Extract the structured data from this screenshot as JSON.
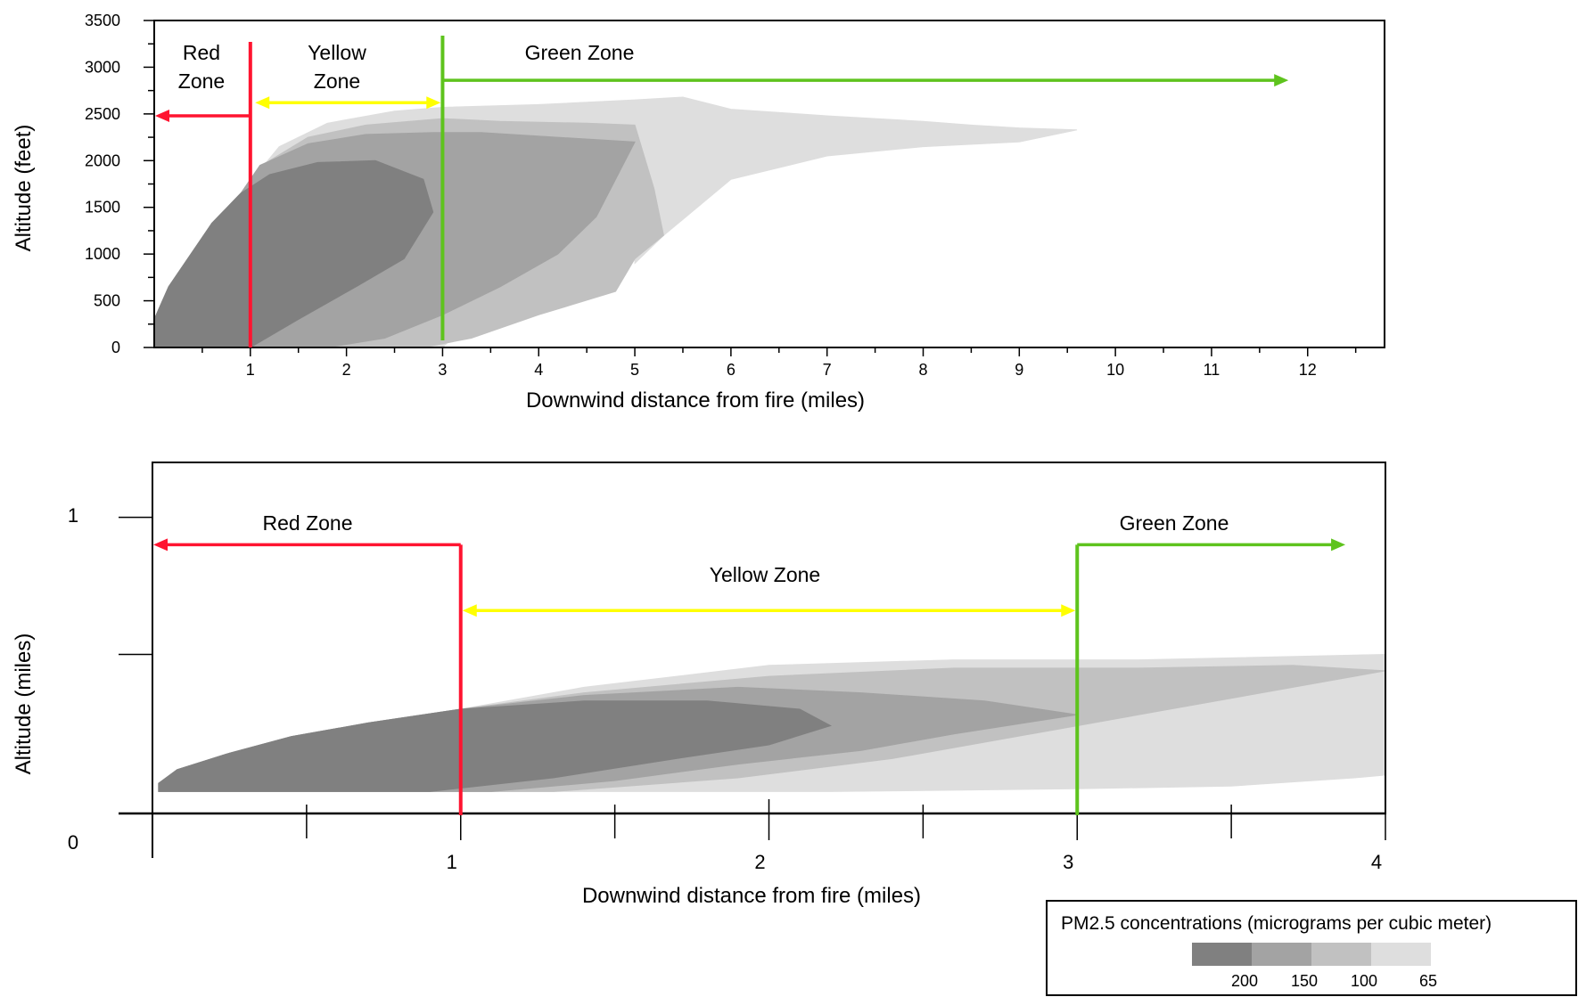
{
  "colors": {
    "level_200": "#808080",
    "level_150": "#a3a3a3",
    "level_100": "#c1c1c1",
    "level_65": "#dedede",
    "red_zone": "#ff1430",
    "yellow_zone": "#ffff00",
    "green_zone": "#5ec31d"
  },
  "chart_data": [
    {
      "type": "area",
      "description_id": "top-plume-chart",
      "xlabel": "Downwind distance from fire (miles)",
      "ylabel": "Altitude (feet)",
      "xlim": [
        0,
        12.8
      ],
      "ylim": [
        0,
        3500
      ],
      "x_ticks": [
        "1",
        "2",
        "3",
        "4",
        "5",
        "6",
        "7",
        "8",
        "9",
        "10",
        "11",
        "12"
      ],
      "x_tick_values": [
        1,
        2,
        3,
        4,
        5,
        6,
        7,
        8,
        9,
        10,
        11,
        12
      ],
      "y_ticks": [
        "0",
        "500",
        "1000",
        "1500",
        "2000",
        "2500",
        "3000",
        "3500"
      ],
      "y_tick_values": [
        0,
        500,
        1000,
        1500,
        2000,
        2500,
        3000,
        3500
      ],
      "grid": false,
      "zones": [
        {
          "label": "Red Zone",
          "line_x": 1.0,
          "arrow_from": 1.0,
          "arrow_to": 0.0,
          "arrow_y": 2480,
          "color_key": "red_zone",
          "label_lines": [
            "Red",
            "Zone"
          ]
        },
        {
          "label": "Yellow Zone",
          "line_x": 3.0,
          "arrow_from": 1.05,
          "arrow_to": 2.98,
          "arrow_y": 2620,
          "color_key": "yellow_zone",
          "label_lines": [
            "Yellow",
            "Zone"
          ]
        },
        {
          "label": "Green Zone",
          "line_x": 3.0,
          "arrow_from": 3.0,
          "arrow_to": 11.8,
          "arrow_y": 2860,
          "color_key": "green_zone",
          "label_lines": [
            "Green Zone"
          ]
        }
      ],
      "series": [
        {
          "level": "65",
          "color_key": "level_65",
          "upper": [
            [
              0,
              300
            ],
            [
              0.15,
              650
            ],
            [
              0.6,
              1330
            ],
            [
              0.9,
              1650
            ],
            [
              1.3,
              2150
            ],
            [
              1.8,
              2400
            ],
            [
              2.5,
              2530
            ],
            [
              3.0,
              2570
            ],
            [
              4.0,
              2600
            ],
            [
              5.0,
              2650
            ],
            [
              5.5,
              2680
            ],
            [
              6.0,
              2550
            ],
            [
              7.0,
              2480
            ],
            [
              8.0,
              2420
            ],
            [
              8.5,
              2380
            ],
            [
              9.0,
              2350
            ],
            [
              9.6,
              2330
            ]
          ],
          "lower": [
            [
              0,
              0
            ],
            [
              3.0,
              0
            ],
            [
              3.5,
              500
            ],
            [
              4.2,
              750
            ],
            [
              5.0,
              950
            ],
            [
              5.0,
              900
            ],
            [
              5.3,
              1200
            ],
            [
              6.0,
              1800
            ],
            [
              7.0,
              2050
            ],
            [
              8.0,
              2150
            ],
            [
              9.0,
              2200
            ],
            [
              9.6,
              2330
            ]
          ]
        },
        {
          "level": "100",
          "color_key": "level_100",
          "upper": [
            [
              0,
              300
            ],
            [
              0.15,
              650
            ],
            [
              0.6,
              1330
            ],
            [
              0.9,
              1650
            ],
            [
              1.2,
              2000
            ],
            [
              1.6,
              2250
            ],
            [
              2.2,
              2380
            ],
            [
              3.0,
              2450
            ],
            [
              3.6,
              2420
            ],
            [
              4.5,
              2400
            ],
            [
              5.0,
              2380
            ]
          ],
          "lower": [
            [
              0,
              0
            ],
            [
              2.8,
              0
            ],
            [
              3.3,
              100
            ],
            [
              4.0,
              350
            ],
            [
              4.8,
              600
            ],
            [
              5.0,
              950
            ],
            [
              5.3,
              1200
            ],
            [
              5.2,
              1700
            ],
            [
              5.0,
              2380
            ]
          ]
        },
        {
          "level": "150",
          "color_key": "level_150",
          "upper": [
            [
              0,
              300
            ],
            [
              0.15,
              650
            ],
            [
              0.6,
              1330
            ],
            [
              0.9,
              1650
            ],
            [
              1.1,
              1950
            ],
            [
              1.6,
              2180
            ],
            [
              2.2,
              2280
            ],
            [
              2.9,
              2300
            ],
            [
              3.4,
              2300
            ],
            [
              4.2,
              2250
            ],
            [
              5.0,
              2200
            ]
          ],
          "lower": [
            [
              0,
              0
            ],
            [
              1.8,
              0
            ],
            [
              2.4,
              100
            ],
            [
              3.0,
              350
            ],
            [
              3.6,
              650
            ],
            [
              4.2,
              1000
            ],
            [
              4.6,
              1400
            ],
            [
              5.0,
              2200
            ]
          ]
        },
        {
          "level": "200",
          "color_key": "level_200",
          "upper": [
            [
              0,
              300
            ],
            [
              0.15,
              650
            ],
            [
              0.6,
              1330
            ],
            [
              0.9,
              1650
            ],
            [
              1.2,
              1850
            ],
            [
              1.7,
              1980
            ],
            [
              2.3,
              2000
            ],
            [
              2.8,
              1800
            ],
            [
              2.9,
              1450
            ]
          ],
          "lower": [
            [
              0,
              0
            ],
            [
              1.0,
              0
            ],
            [
              1.5,
              300
            ],
            [
              2.1,
              650
            ],
            [
              2.6,
              950
            ],
            [
              2.9,
              1450
            ]
          ]
        }
      ]
    },
    {
      "type": "area",
      "description_id": "bottom-plume-chart",
      "xlabel": "Downwind distance from fire (miles)",
      "ylabel": "Altitude (miles)",
      "xlim": [
        0,
        4
      ],
      "ylim": [
        -0.08,
        1.2
      ],
      "x_ticks": [
        "1",
        "2",
        "3",
        "4"
      ],
      "x_tick_values": [
        1,
        2,
        3,
        4
      ],
      "y_ticks": [
        "0",
        "1"
      ],
      "y_tick_values": [
        0,
        1
      ],
      "grid": false,
      "zones": [
        {
          "label": "Red Zone",
          "line_x": 1.0,
          "arrow_from": 1.0,
          "arrow_to": 0.0,
          "arrow_y": 0.9,
          "color_key": "red_zone"
        },
        {
          "label": "Yellow Zone",
          "line_x": 3.0,
          "arrow_from": 1.0,
          "arrow_to": 3.0,
          "arrow_y": 0.66,
          "color_key": "yellow_zone"
        },
        {
          "label": "Green Zone",
          "line_x": 3.0,
          "arrow_from": 3.0,
          "arrow_to": 3.87,
          "arrow_y": 0.9,
          "color_key": "green_zone"
        }
      ],
      "series": [
        {
          "level": "65",
          "color_key": "level_65",
          "upper": [
            [
              0.02,
              0.03
            ],
            [
              0.08,
              0.08
            ],
            [
              0.25,
              0.14
            ],
            [
              0.45,
              0.2
            ],
            [
              0.7,
              0.25
            ],
            [
              1.0,
              0.3
            ],
            [
              1.4,
              0.38
            ],
            [
              2.0,
              0.46
            ],
            [
              2.6,
              0.48
            ],
            [
              3.2,
              0.48
            ],
            [
              4.0,
              0.5
            ]
          ],
          "lower": [
            [
              0.02,
              0
            ],
            [
              1.5,
              0
            ],
            [
              2.2,
              0
            ],
            [
              3.0,
              0.01
            ],
            [
              3.5,
              0.02
            ],
            [
              3.9,
              0.05
            ],
            [
              4.0,
              0.06
            ]
          ]
        },
        {
          "level": "100",
          "color_key": "level_100",
          "upper": [
            [
              0.02,
              0.03
            ],
            [
              0.08,
              0.08
            ],
            [
              0.25,
              0.14
            ],
            [
              0.45,
              0.2
            ],
            [
              0.7,
              0.25
            ],
            [
              1.0,
              0.3
            ],
            [
              1.4,
              0.36
            ],
            [
              2.0,
              0.42
            ],
            [
              2.6,
              0.45
            ],
            [
              3.2,
              0.45
            ],
            [
              3.7,
              0.46
            ],
            [
              4.0,
              0.44
            ]
          ],
          "lower": [
            [
              0.02,
              0
            ],
            [
              1.3,
              0
            ],
            [
              1.9,
              0.05
            ],
            [
              2.4,
              0.12
            ],
            [
              2.9,
              0.22
            ],
            [
              3.3,
              0.3
            ],
            [
              3.7,
              0.38
            ],
            [
              4.0,
              0.44
            ]
          ]
        },
        {
          "level": "150",
          "color_key": "level_150",
          "upper": [
            [
              0.02,
              0.03
            ],
            [
              0.08,
              0.08
            ],
            [
              0.25,
              0.14
            ],
            [
              0.45,
              0.2
            ],
            [
              0.7,
              0.25
            ],
            [
              1.0,
              0.3
            ],
            [
              1.4,
              0.35
            ],
            [
              1.9,
              0.38
            ],
            [
              2.3,
              0.36
            ],
            [
              2.7,
              0.33
            ],
            [
              3.0,
              0.28
            ]
          ],
          "lower": [
            [
              0.02,
              0
            ],
            [
              1.1,
              0
            ],
            [
              1.5,
              0.04
            ],
            [
              1.9,
              0.1
            ],
            [
              2.3,
              0.15
            ],
            [
              2.6,
              0.21
            ],
            [
              3.0,
              0.28
            ]
          ]
        },
        {
          "level": "200",
          "color_key": "level_200",
          "upper": [
            [
              0.02,
              0.03
            ],
            [
              0.08,
              0.08
            ],
            [
              0.25,
              0.14
            ],
            [
              0.45,
              0.2
            ],
            [
              0.7,
              0.25
            ],
            [
              1.0,
              0.3
            ],
            [
              1.4,
              0.33
            ],
            [
              1.8,
              0.33
            ],
            [
              2.1,
              0.3
            ],
            [
              2.2,
              0.24
            ]
          ],
          "lower": [
            [
              0.02,
              0
            ],
            [
              0.9,
              0
            ],
            [
              1.3,
              0.05
            ],
            [
              1.7,
              0.12
            ],
            [
              2.0,
              0.17
            ],
            [
              2.2,
              0.24
            ]
          ]
        }
      ]
    }
  ],
  "legend": {
    "title": "PM2.5 concentrations (micrograms per cubic meter)",
    "entries": [
      {
        "label": "200",
        "color_key": "level_200"
      },
      {
        "label": "150",
        "color_key": "level_150"
      },
      {
        "label": "100",
        "color_key": "level_100"
      },
      {
        "label": "65",
        "color_key": "level_65"
      }
    ]
  }
}
